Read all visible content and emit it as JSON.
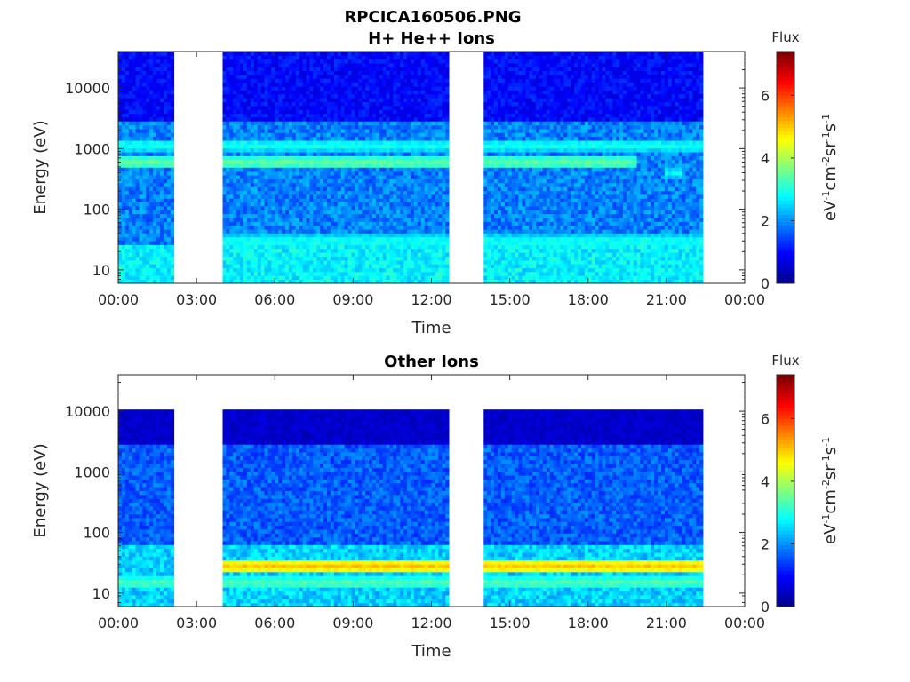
{
  "figure": {
    "title": "RPCICA160506.PNG",
    "colormap": [
      "#00008f",
      "#0000ff",
      "#0080ff",
      "#00ffff",
      "#80ff80",
      "#ffff00",
      "#ff8000",
      "#ff0000",
      "#800000"
    ],
    "background": "#ffffff"
  },
  "chart_data": [
    {
      "type": "heatmap",
      "title": "H+ He++ Ions",
      "xlabel": "Time",
      "ylabel": "Energy (eV)",
      "xscale": "time",
      "xlim": [
        "00:00",
        "24:00"
      ],
      "xticks": [
        "00:00",
        "03:00",
        "06:00",
        "09:00",
        "12:00",
        "15:00",
        "18:00",
        "21:00",
        "00:00"
      ],
      "yscale": "log",
      "ylim": [
        6,
        40000
      ],
      "yticks": [
        10,
        100,
        1000,
        10000
      ],
      "ytick_labels": [
        "10",
        "100",
        "1000",
        "10000"
      ],
      "data_gaps": [
        [
          "02:05",
          "04:00"
        ],
        [
          "12:40",
          "14:00"
        ],
        [
          "22:25",
          "24:00"
        ]
      ],
      "features": [
        {
          "energy_eV": 600,
          "from": "00:00",
          "to": "19:50",
          "flux": 3.3
        },
        {
          "energy_eV": 1150,
          "from": "00:00",
          "to": "22:25",
          "flux": 2.8
        },
        {
          "energy_eV": 30,
          "from": "04:00",
          "to": "22:25",
          "flux": 2.8
        },
        {
          "energy_eV": 400,
          "from": "21:00",
          "to": "21:40",
          "flux": 2.6
        }
      ],
      "colorbar": {
        "label": "Flux",
        "units": "eV-1cm-2sr-1s-1",
        "range": [
          0,
          7.4
        ],
        "ticks": [
          "0",
          "2",
          "4",
          "6"
        ]
      }
    },
    {
      "type": "heatmap",
      "title": "Other Ions",
      "xlabel": "Time",
      "ylabel": "Energy (eV)",
      "xscale": "time",
      "xlim": [
        "00:00",
        "24:00"
      ],
      "xticks": [
        "00:00",
        "03:00",
        "06:00",
        "09:00",
        "12:00",
        "15:00",
        "18:00",
        "21:00",
        "00:00"
      ],
      "yscale": "log",
      "ylim": [
        6,
        40000
      ],
      "yticks": [
        10,
        100,
        1000,
        10000
      ],
      "ytick_labels": [
        "10",
        "100",
        "1000",
        "10000"
      ],
      "data_gaps": [
        [
          "02:05",
          "04:00"
        ],
        [
          "12:40",
          "14:00"
        ],
        [
          "22:25",
          "24:00"
        ]
      ],
      "features": [
        {
          "energy_eV": 28,
          "from": "04:00",
          "to": "22:25",
          "flux": 4.8
        },
        {
          "energy_eV": 15,
          "from": "00:00",
          "to": "22:25",
          "flux": 3.2
        }
      ],
      "colorbar": {
        "label": "Flux",
        "units": "eV-1cm-2sr-1s-1",
        "range": [
          0,
          7.4
        ],
        "ticks": [
          "0",
          "2",
          "4",
          "6"
        ]
      }
    }
  ]
}
